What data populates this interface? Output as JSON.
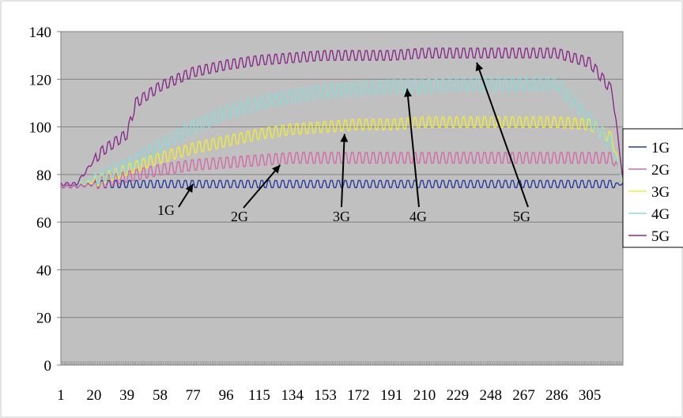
{
  "chart_data": {
    "type": "line",
    "title": "",
    "xlabel": "",
    "ylabel": "",
    "ylim": [
      0,
      140
    ],
    "xlim": [
      1,
      324
    ],
    "y_ticks": [
      "0",
      "20",
      "40",
      "60",
      "80",
      "100",
      "120",
      "140"
    ],
    "x_ticks": [
      "1",
      "20",
      "39",
      "58",
      "77",
      "96",
      "115",
      "134",
      "153",
      "172",
      "191",
      "210",
      "229",
      "248",
      "267",
      "286",
      "305"
    ],
    "grid": "horizontal",
    "plot_background": "#c0c0c0",
    "legend_position": "right",
    "series": [
      {
        "name": "1G",
        "color": "#2a3b9c",
        "x": [
          1,
          10,
          20,
          39,
          58,
          77,
          96,
          115,
          134,
          153,
          172,
          191,
          210,
          229,
          248,
          267,
          286,
          305,
          318,
          324
        ],
        "values": [
          75,
          75,
          76,
          76,
          76,
          76,
          76,
          76,
          76,
          76,
          76,
          76,
          76,
          76,
          76,
          76,
          76,
          76,
          76,
          76
        ],
        "oscillation": 1.5
      },
      {
        "name": "2G",
        "color": "#d46aa8",
        "x": [
          1,
          10,
          20,
          39,
          58,
          77,
          96,
          115,
          134,
          153,
          172,
          191,
          210,
          229,
          248,
          267,
          286,
          305,
          318,
          324
        ],
        "values": [
          75,
          75,
          76,
          79,
          82,
          84,
          85,
          86,
          87,
          87,
          87,
          87,
          87,
          87,
          87,
          87,
          87,
          87,
          87,
          80
        ],
        "oscillation": 2.2
      },
      {
        "name": "3G",
        "color": "#f0ea3c",
        "x": [
          1,
          10,
          20,
          39,
          58,
          77,
          96,
          115,
          134,
          153,
          172,
          191,
          210,
          229,
          248,
          267,
          286,
          305,
          318,
          324
        ],
        "values": [
          76,
          76,
          77,
          82,
          87,
          91,
          94,
          97,
          99,
          100,
          101,
          101,
          102,
          102,
          102,
          102,
          102,
          101,
          95,
          76
        ],
        "oscillation": 2.2
      },
      {
        "name": "4G",
        "color": "#8fd9d8",
        "x": [
          1,
          10,
          20,
          39,
          58,
          77,
          96,
          115,
          134,
          153,
          172,
          191,
          210,
          229,
          248,
          267,
          286,
          305,
          318,
          324
        ],
        "values": [
          76,
          76,
          78,
          84,
          92,
          100,
          106,
          110,
          113,
          115,
          116,
          117,
          117,
          118,
          118,
          118,
          118,
          103,
          92,
          77
        ],
        "oscillation": 2.8
      },
      {
        "name": "5G",
        "color": "#8a2a8a",
        "x": [
          1,
          10,
          20,
          25,
          39,
          44,
          58,
          77,
          96,
          115,
          134,
          153,
          172,
          191,
          210,
          229,
          248,
          267,
          286,
          305,
          318,
          324
        ],
        "values": [
          76,
          76,
          86,
          90,
          97,
          110,
          117,
          123,
          126,
          128,
          129,
          130,
          130,
          130,
          131,
          131,
          131,
          131,
          131,
          127,
          115,
          78
        ],
        "oscillation": 2.0
      }
    ],
    "annotations": [
      {
        "text": "1G",
        "target_x": 77,
        "target_y": 76
      },
      {
        "text": "2G",
        "target_x": 127,
        "target_y": 84
      },
      {
        "text": "3G",
        "target_x": 164,
        "target_y": 97
      },
      {
        "text": "4G",
        "target_x": 200,
        "target_y": 116
      },
      {
        "text": "5G",
        "target_x": 240,
        "target_y": 127
      }
    ]
  }
}
